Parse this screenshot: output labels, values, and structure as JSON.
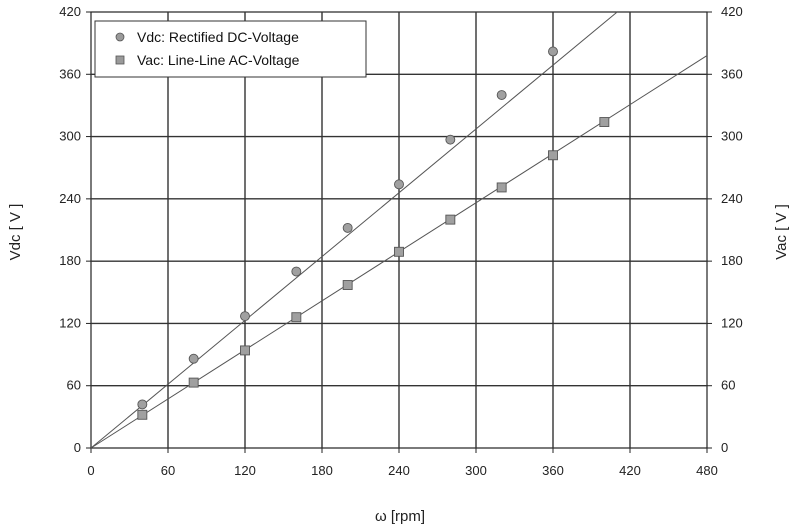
{
  "chart_data": {
    "type": "scatter",
    "title": "",
    "xlabel": "ω [rpm]",
    "ylabel": "Vdc [ V ]",
    "y2label": "Vac [ V ]",
    "xlim": [
      0,
      480
    ],
    "ylim": [
      0,
      420
    ],
    "y2lim": [
      0,
      420
    ],
    "xticks": [
      0,
      60,
      120,
      180,
      240,
      300,
      360,
      420,
      480
    ],
    "yticks": [
      0,
      60,
      120,
      180,
      240,
      300,
      360,
      420
    ],
    "grid": true,
    "legend_position": "top-left",
    "series": [
      {
        "name": "Vdc: Rectified DC-Voltage",
        "axis": "left",
        "marker": "circle",
        "x": [
          40,
          80,
          120,
          160,
          200,
          240,
          280,
          320,
          360
        ],
        "y": [
          42,
          86,
          127,
          170,
          212,
          254,
          297,
          340,
          382
        ],
        "fit_line": {
          "x": [
            0,
            410
          ],
          "y": [
            0,
            420
          ]
        }
      },
      {
        "name": "Vac: Line-Line AC-Voltage",
        "axis": "right",
        "marker": "square",
        "x": [
          40,
          80,
          120,
          160,
          200,
          240,
          280,
          320,
          360,
          400
        ],
        "y": [
          32,
          63,
          94,
          126,
          157,
          189,
          220,
          251,
          282,
          314
        ],
        "fit_line": {
          "x": [
            0,
            480
          ],
          "y": [
            0,
            378
          ]
        }
      }
    ]
  }
}
